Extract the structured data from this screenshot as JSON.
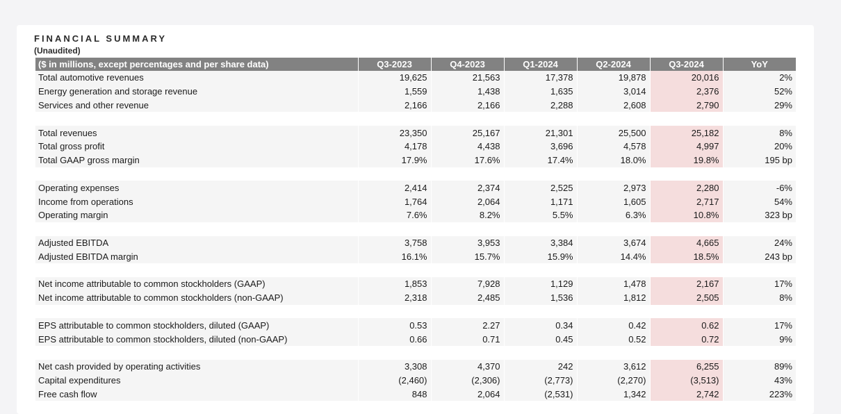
{
  "title": "FINANCIAL SUMMARY",
  "subtitle": "(Unaudited)",
  "columns": [
    "($ in millions, except percentages and per share data)",
    "Q3-2023",
    "Q4-2023",
    "Q1-2024",
    "Q2-2024",
    "Q3-2024",
    "YoY"
  ],
  "groups": [
    [
      {
        "label": "Total automotive revenues",
        "values": [
          "19,625",
          "21,563",
          "17,378",
          "19,878",
          "20,016",
          "2%"
        ]
      },
      {
        "label": "Energy generation and storage revenue",
        "values": [
          "1,559",
          "1,438",
          "1,635",
          "3,014",
          "2,376",
          "52%"
        ]
      },
      {
        "label": "Services and other revenue",
        "values": [
          "2,166",
          "2,166",
          "2,288",
          "2,608",
          "2,790",
          "29%"
        ]
      }
    ],
    [
      {
        "label": "Total revenues",
        "values": [
          "23,350",
          "25,167",
          "21,301",
          "25,500",
          "25,182",
          "8%"
        ]
      },
      {
        "label": "Total gross profit",
        "values": [
          "4,178",
          "4,438",
          "3,696",
          "4,578",
          "4,997",
          "20%"
        ]
      },
      {
        "label": "Total GAAP gross margin",
        "values": [
          "17.9%",
          "17.6%",
          "17.4%",
          "18.0%",
          "19.8%",
          "195 bp"
        ]
      }
    ],
    [
      {
        "label": "Operating expenses",
        "values": [
          "2,414",
          "2,374",
          "2,525",
          "2,973",
          "2,280",
          "-6%"
        ]
      },
      {
        "label": "Income from operations",
        "values": [
          "1,764",
          "2,064",
          "1,171",
          "1,605",
          "2,717",
          "54%"
        ]
      },
      {
        "label": "Operating margin",
        "values": [
          "7.6%",
          "8.2%",
          "5.5%",
          "6.3%",
          "10.8%",
          "323 bp"
        ]
      }
    ],
    [
      {
        "label": "Adjusted EBITDA",
        "values": [
          "3,758",
          "3,953",
          "3,384",
          "3,674",
          "4,665",
          "24%"
        ]
      },
      {
        "label": "Adjusted EBITDA margin",
        "values": [
          "16.1%",
          "15.7%",
          "15.9%",
          "14.4%",
          "18.5%",
          "243 bp"
        ]
      }
    ],
    [
      {
        "label": "Net income attributable to common stockholders (GAAP)",
        "values": [
          "1,853",
          "7,928",
          "1,129",
          "1,478",
          "2,167",
          "17%"
        ]
      },
      {
        "label": "Net income attributable to common stockholders (non-GAAP)",
        "values": [
          "2,318",
          "2,485",
          "1,536",
          "1,812",
          "2,505",
          "8%"
        ]
      }
    ],
    [
      {
        "label": "EPS attributable to common stockholders, diluted (GAAP)",
        "values": [
          "0.53",
          "2.27",
          "0.34",
          "0.42",
          "0.62",
          "17%"
        ]
      },
      {
        "label": "EPS attributable to common stockholders, diluted (non-GAAP)",
        "values": [
          "0.66",
          "0.71",
          "0.45",
          "0.52",
          "0.72",
          "9%"
        ]
      }
    ],
    [
      {
        "label": "Net cash provided by operating activities",
        "values": [
          "3,308",
          "4,370",
          "242",
          "3,612",
          "6,255",
          "89%"
        ]
      },
      {
        "label": "Capital expenditures",
        "values": [
          "(2,460)",
          "(2,306)",
          "(2,773)",
          "(2,270)",
          "(3,513)",
          "43%"
        ]
      },
      {
        "label": "Free cash flow",
        "values": [
          "848",
          "2,064",
          "(2,531)",
          "1,342",
          "2,742",
          "223%"
        ]
      }
    ]
  ],
  "colors": {
    "header_bg": "#828282",
    "row_bg": "#f5f5f5",
    "highlight": "#f5dddd"
  }
}
